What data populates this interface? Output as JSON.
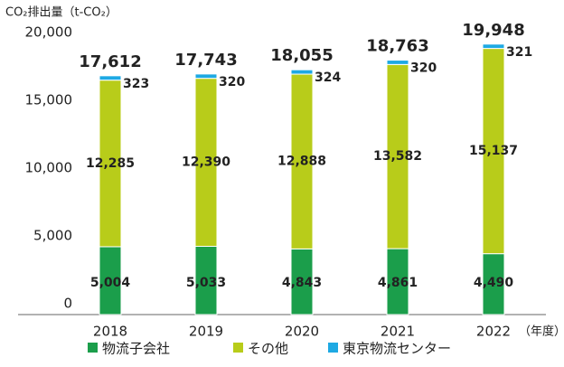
{
  "chart_data": {
    "type": "stacked_bar",
    "y_axis_label": "CO₂排出量（t-CO₂）",
    "x_axis_label": "（年度）",
    "categories": [
      "2018",
      "2019",
      "2020",
      "2021",
      "2022"
    ],
    "series": [
      {
        "name": "物流子会社",
        "color": "#1b9e4b",
        "values": [
          5004,
          5033,
          4843,
          4861,
          4490
        ],
        "value_labels": [
          "5,004",
          "5,033",
          "4,843",
          "4,861",
          "4,490"
        ]
      },
      {
        "name": "その他",
        "color": "#b8cc1a",
        "values": [
          12285,
          12390,
          12888,
          13582,
          15137
        ],
        "value_labels": [
          "12,285",
          "12,390",
          "12,888",
          "13,582",
          "15,137"
        ]
      },
      {
        "name": "東京物流センター",
        "color": "#1ea9e3",
        "values": [
          323,
          320,
          324,
          320,
          321
        ]
      }
    ],
    "totals": [
      17612,
      17743,
      18055,
      18763,
      19948
    ],
    "total_labels": [
      "17,612",
      "17,743",
      "18,055",
      "18,763",
      "19,948"
    ],
    "ylim": [
      0,
      20000
    ],
    "yticks": [
      0,
      {
        "value": 5000,
        "label": "5,000"
      },
      {
        "value": 10000,
        "label": "10,000"
      },
      {
        "value": 15000,
        "label": "15,000"
      },
      {
        "value": 20000,
        "label": "20,000"
      }
    ],
    "grid": false
  }
}
